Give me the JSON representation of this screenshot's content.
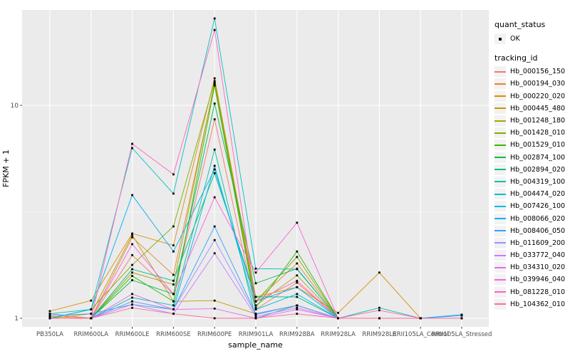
{
  "chart_data": {
    "type": "line",
    "xlabel": "sample_name",
    "ylabel": "FPKM + 1",
    "y_scale": "log10",
    "yticks": [
      1,
      10
    ],
    "ylim": [
      0.97,
      28
    ],
    "grid": {
      "major": true,
      "minor": true,
      "legend_position": "right"
    },
    "categories": [
      "PB350LA",
      "RRIM600LA",
      "RRIM600LE",
      "RRIM600SE",
      "RRIM600PE",
      "RRIM901LA",
      "RRIM928BA",
      "RRIM928LA",
      "RRIM928LE",
      "RRII105LA_Control",
      "RRII105LA_Stressed"
    ],
    "series": [
      {
        "name": "Hb_000156_150",
        "color": "#F8766D",
        "values": [
          1.05,
          1.0,
          1.98,
          1.3,
          8.6,
          1.1,
          1.47,
          1.0,
          1.0,
          1.0,
          1.0
        ]
      },
      {
        "name": "Hb_000194_030",
        "color": "#EA8331",
        "values": [
          1.02,
          1.0,
          2.4,
          1.6,
          12.6,
          1.2,
          1.81,
          1.0,
          1.0,
          1.0,
          1.0
        ]
      },
      {
        "name": "Hb_000220_020",
        "color": "#D89000",
        "values": [
          1.08,
          1.21,
          2.5,
          2.2,
          13.4,
          1.26,
          1.4,
          1.06,
          1.64,
          1.0,
          1.0
        ]
      },
      {
        "name": "Hb_000445_480",
        "color": "#C09B00",
        "values": [
          1.0,
          1.05,
          2.46,
          1.2,
          1.21,
          1.05,
          1.15,
          1.0,
          1.0,
          1.0,
          1.0
        ]
      },
      {
        "name": "Hb_001248_180",
        "color": "#A3A500",
        "values": [
          1.0,
          1.0,
          1.64,
          1.44,
          12.8,
          1.15,
          1.59,
          1.0,
          1.0,
          1.0,
          1.0
        ]
      },
      {
        "name": "Hb_001428_010",
        "color": "#7CAE00",
        "values": [
          1.0,
          1.1,
          1.78,
          2.7,
          13.0,
          1.2,
          1.94,
          1.0,
          1.0,
          1.0,
          1.0
        ]
      },
      {
        "name": "Hb_001529_010",
        "color": "#39B600",
        "values": [
          1.0,
          1.0,
          1.58,
          1.2,
          12.4,
          1.12,
          2.06,
          1.0,
          1.0,
          1.0,
          1.0
        ]
      },
      {
        "name": "Hb_002874_100",
        "color": "#00BB4E",
        "values": [
          1.0,
          1.0,
          1.51,
          1.3,
          10.2,
          1.46,
          1.71,
          1.0,
          1.0,
          1.0,
          1.0
        ]
      },
      {
        "name": "Hb_002894_020",
        "color": "#00BF7D",
        "values": [
          1.0,
          1.0,
          1.7,
          1.5,
          4.8,
          1.26,
          1.26,
          1.0,
          1.0,
          1.0,
          1.0
        ]
      },
      {
        "name": "Hb_004319_100",
        "color": "#00C1A3",
        "values": [
          1.0,
          1.0,
          1.25,
          1.15,
          6.2,
          1.0,
          1.15,
          1.0,
          1.12,
          1.0,
          1.0
        ]
      },
      {
        "name": "Hb_004474_020",
        "color": "#00BFC4",
        "values": [
          1.05,
          1.1,
          6.3,
          3.85,
          25.6,
          1.71,
          1.7,
          1.0,
          1.0,
          1.0,
          1.0
        ]
      },
      {
        "name": "Hb_007426_100",
        "color": "#00BAE0",
        "values": [
          1.0,
          1.0,
          1.2,
          1.1,
          5.2,
          1.1,
          1.3,
          1.0,
          1.0,
          1.0,
          1.0
        ]
      },
      {
        "name": "Hb_008066_020",
        "color": "#00B0F6",
        "values": [
          1.0,
          1.1,
          3.79,
          2.06,
          5.0,
          1.2,
          1.4,
          1.0,
          1.0,
          1.0,
          1.04
        ]
      },
      {
        "name": "Hb_008406_050",
        "color": "#35A2FF",
        "values": [
          1.03,
          1.05,
          1.16,
          1.1,
          2.7,
          1.05,
          1.15,
          1.0,
          1.0,
          1.0,
          1.03
        ]
      },
      {
        "name": "Hb_011609_200",
        "color": "#9590FF",
        "values": [
          1.0,
          1.0,
          1.2,
          1.1,
          2.33,
          1.04,
          1.15,
          1.0,
          1.0,
          1.0,
          1.0
        ]
      },
      {
        "name": "Hb_033772_040",
        "color": "#C77CFF",
        "values": [
          1.0,
          1.0,
          1.16,
          1.05,
          2.02,
          1.02,
          1.12,
          1.0,
          1.0,
          1.0,
          1.0
        ]
      },
      {
        "name": "Hb_034310_020",
        "color": "#E76BF3",
        "values": [
          1.0,
          1.0,
          1.3,
          1.1,
          1.11,
          1.0,
          1.1,
          1.0,
          1.0,
          1.0,
          1.0
        ]
      },
      {
        "name": "Hb_039946_040",
        "color": "#FA62DB",
        "values": [
          1.0,
          1.0,
          2.23,
          1.3,
          3.7,
          1.64,
          2.81,
          1.0,
          1.0,
          1.0,
          1.0
        ]
      },
      {
        "name": "Hb_081228_010",
        "color": "#FF62BC",
        "values": [
          1.0,
          1.0,
          6.6,
          4.74,
          22.6,
          1.2,
          1.5,
          1.0,
          1.09,
          1.0,
          1.0
        ]
      },
      {
        "name": "Hb_104362_010",
        "color": "#FF6A98",
        "values": [
          1.0,
          1.0,
          1.12,
          1.05,
          1.0,
          1.0,
          1.05,
          1.0,
          1.0,
          1.0,
          1.0
        ]
      }
    ],
    "legend": {
      "quant_status_title": "quant_status",
      "quant_status_items": [
        {
          "label": "OK",
          "marker": "point",
          "color": "#000000"
        }
      ],
      "tracking_title": "tracking_id"
    },
    "style": {
      "panel_bg": "#EBEBEB",
      "grid_color": "#FFFFFF",
      "tick_text_color": "#4D4D4D",
      "axis_title_color": "#000000",
      "point_color": "#000000",
      "legend_key_bg": "#F2F2F2"
    }
  }
}
